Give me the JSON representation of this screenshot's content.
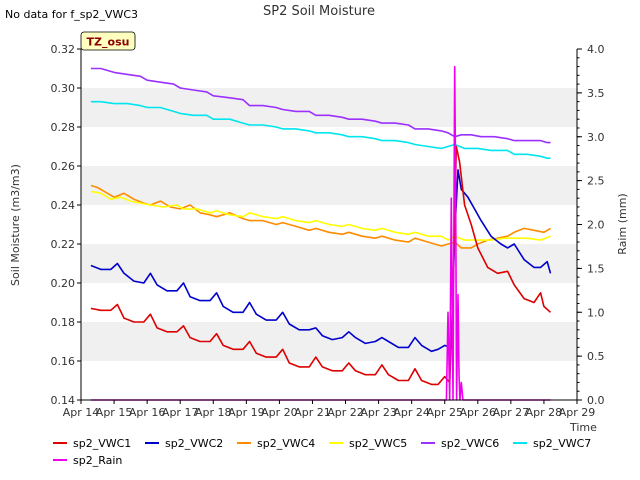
{
  "chart_data": {
    "type": "line",
    "title": "SP2 Soil Moisture",
    "no_data_note": "No data for f_sp2_VWC3",
    "badge": "TZ_osu",
    "xlabel": "Time",
    "ylabel": "Soil Moisture (m3/m3)",
    "y2label": "Raim (mm)",
    "x_range": [
      14,
      29
    ],
    "ylim": [
      0.14,
      0.32
    ],
    "y2lim": [
      0.0,
      4.0
    ],
    "x_ticks": [
      {
        "v": 14,
        "label": "Apr 14"
      },
      {
        "v": 15,
        "label": "Apr 15"
      },
      {
        "v": 16,
        "label": "Apr 16"
      },
      {
        "v": 17,
        "label": "Apr 17"
      },
      {
        "v": 18,
        "label": "Apr 18"
      },
      {
        "v": 19,
        "label": "Apr 19"
      },
      {
        "v": 20,
        "label": "Apr 20"
      },
      {
        "v": 21,
        "label": "Apr 21"
      },
      {
        "v": 22,
        "label": "Apr 22"
      },
      {
        "v": 23,
        "label": "Apr 23"
      },
      {
        "v": 24,
        "label": "Apr 24"
      },
      {
        "v": 25,
        "label": "Apr 25"
      },
      {
        "v": 26,
        "label": "Apr 26"
      },
      {
        "v": 27,
        "label": "Apr 27"
      },
      {
        "v": 28,
        "label": "Apr 28"
      },
      {
        "v": 29,
        "label": "Apr 29"
      }
    ],
    "y_ticks": [
      {
        "v": 0.14,
        "label": "0.14"
      },
      {
        "v": 0.16,
        "label": "0.16"
      },
      {
        "v": 0.18,
        "label": "0.18"
      },
      {
        "v": 0.2,
        "label": "0.20"
      },
      {
        "v": 0.22,
        "label": "0.22"
      },
      {
        "v": 0.24,
        "label": "0.24"
      },
      {
        "v": 0.26,
        "label": "0.26"
      },
      {
        "v": 0.28,
        "label": "0.28"
      },
      {
        "v": 0.3,
        "label": "0.30"
      },
      {
        "v": 0.32,
        "label": "0.32"
      }
    ],
    "y2_ticks": [
      {
        "v": 0.0,
        "label": "0.0"
      },
      {
        "v": 0.5,
        "label": "0.5"
      },
      {
        "v": 1.0,
        "label": "1.0"
      },
      {
        "v": 1.5,
        "label": "1.5"
      },
      {
        "v": 2.0,
        "label": "2.0"
      },
      {
        "v": 2.5,
        "label": "2.5"
      },
      {
        "v": 3.0,
        "label": "3.0"
      },
      {
        "v": 3.5,
        "label": "3.5"
      },
      {
        "v": 4.0,
        "label": "4.0"
      }
    ],
    "series": [
      {
        "name": "sp2_VWC6",
        "color": "#9b30ff",
        "axis": "left",
        "x": [
          14.3,
          14.6,
          15.0,
          15.4,
          15.8,
          16.0,
          16.4,
          16.8,
          17.0,
          17.4,
          17.8,
          18.0,
          18.5,
          18.9,
          19.1,
          19.5,
          19.9,
          20.1,
          20.5,
          20.9,
          21.1,
          21.5,
          21.9,
          22.1,
          22.5,
          22.9,
          23.1,
          23.5,
          23.9,
          24.1,
          24.5,
          24.9,
          25.1,
          25.3,
          25.5,
          25.8,
          26.1,
          26.5,
          26.9,
          27.1,
          27.5,
          27.9,
          28.1,
          28.2
        ],
        "y": [
          0.31,
          0.31,
          0.308,
          0.307,
          0.306,
          0.304,
          0.303,
          0.302,
          0.3,
          0.299,
          0.298,
          0.296,
          0.295,
          0.294,
          0.291,
          0.291,
          0.29,
          0.289,
          0.288,
          0.288,
          0.286,
          0.286,
          0.285,
          0.284,
          0.284,
          0.283,
          0.282,
          0.282,
          0.281,
          0.279,
          0.279,
          0.278,
          0.277,
          0.275,
          0.276,
          0.276,
          0.275,
          0.275,
          0.274,
          0.273,
          0.273,
          0.273,
          0.272,
          0.272
        ]
      },
      {
        "name": "sp2_VWC7",
        "color": "#00e5ee",
        "axis": "left",
        "x": [
          14.3,
          14.6,
          15.0,
          15.4,
          15.8,
          16.0,
          16.4,
          16.8,
          17.0,
          17.4,
          17.8,
          18.0,
          18.5,
          18.9,
          19.1,
          19.5,
          19.9,
          20.1,
          20.5,
          20.9,
          21.1,
          21.5,
          21.9,
          22.1,
          22.5,
          22.9,
          23.1,
          23.5,
          23.9,
          24.1,
          24.5,
          24.9,
          25.1,
          25.3,
          25.6,
          26.0,
          26.4,
          26.9,
          27.1,
          27.5,
          27.9,
          28.1,
          28.2
        ],
        "y": [
          0.293,
          0.293,
          0.292,
          0.292,
          0.291,
          0.29,
          0.29,
          0.288,
          0.287,
          0.286,
          0.286,
          0.284,
          0.284,
          0.282,
          0.281,
          0.281,
          0.28,
          0.279,
          0.279,
          0.278,
          0.277,
          0.277,
          0.276,
          0.275,
          0.275,
          0.274,
          0.273,
          0.273,
          0.272,
          0.271,
          0.27,
          0.269,
          0.27,
          0.271,
          0.269,
          0.269,
          0.268,
          0.268,
          0.266,
          0.266,
          0.265,
          0.264,
          0.264
        ]
      },
      {
        "name": "sp2_VWC4",
        "color": "#ff8c00",
        "axis": "left",
        "x": [
          14.3,
          14.5,
          14.8,
          15.0,
          15.3,
          15.6,
          15.9,
          16.1,
          16.4,
          16.7,
          17.0,
          17.3,
          17.6,
          17.9,
          18.1,
          18.5,
          18.9,
          19.1,
          19.5,
          19.9,
          20.1,
          20.5,
          20.9,
          21.1,
          21.5,
          21.9,
          22.1,
          22.5,
          22.9,
          23.1,
          23.5,
          23.9,
          24.1,
          24.5,
          24.9,
          25.1,
          25.3,
          25.5,
          25.8,
          26.0,
          26.3,
          26.6,
          26.9,
          27.1,
          27.4,
          27.7,
          28.0,
          28.2
        ],
        "y": [
          0.25,
          0.249,
          0.246,
          0.244,
          0.246,
          0.243,
          0.241,
          0.24,
          0.242,
          0.239,
          0.238,
          0.24,
          0.236,
          0.235,
          0.234,
          0.236,
          0.233,
          0.232,
          0.232,
          0.23,
          0.231,
          0.229,
          0.227,
          0.228,
          0.226,
          0.225,
          0.226,
          0.224,
          0.223,
          0.224,
          0.222,
          0.221,
          0.223,
          0.221,
          0.219,
          0.22,
          0.221,
          0.218,
          0.218,
          0.22,
          0.222,
          0.223,
          0.224,
          0.226,
          0.228,
          0.227,
          0.226,
          0.228
        ]
      },
      {
        "name": "sp2_VWC5",
        "color": "#ffff00",
        "axis": "left",
        "x": [
          14.3,
          14.6,
          14.9,
          15.2,
          15.5,
          15.8,
          16.1,
          16.5,
          16.9,
          17.1,
          17.5,
          17.9,
          18.1,
          18.5,
          18.9,
          19.1,
          19.5,
          19.9,
          20.1,
          20.5,
          20.9,
          21.1,
          21.5,
          21.9,
          22.1,
          22.5,
          22.9,
          23.1,
          23.5,
          23.9,
          24.1,
          24.5,
          24.9,
          25.1,
          25.3,
          25.6,
          26.0,
          26.4,
          26.8,
          27.1,
          27.5,
          27.9,
          28.2
        ],
        "y": [
          0.247,
          0.246,
          0.243,
          0.244,
          0.242,
          0.241,
          0.24,
          0.239,
          0.24,
          0.238,
          0.238,
          0.236,
          0.237,
          0.235,
          0.234,
          0.236,
          0.234,
          0.233,
          0.234,
          0.232,
          0.231,
          0.232,
          0.23,
          0.229,
          0.23,
          0.228,
          0.227,
          0.228,
          0.226,
          0.225,
          0.226,
          0.224,
          0.224,
          0.222,
          0.224,
          0.222,
          0.222,
          0.222,
          0.223,
          0.223,
          0.223,
          0.222,
          0.224
        ]
      },
      {
        "name": "sp2_VWC2",
        "color": "#0000cd",
        "axis": "left",
        "x": [
          14.3,
          14.6,
          14.9,
          15.1,
          15.3,
          15.6,
          15.9,
          16.1,
          16.3,
          16.6,
          16.9,
          17.1,
          17.3,
          17.6,
          17.9,
          18.1,
          18.3,
          18.6,
          18.9,
          19.1,
          19.3,
          19.6,
          19.9,
          20.1,
          20.3,
          20.6,
          20.9,
          21.1,
          21.3,
          21.6,
          21.9,
          22.1,
          22.3,
          22.6,
          22.9,
          23.1,
          23.3,
          23.6,
          23.9,
          24.1,
          24.3,
          24.6,
          24.8,
          25.0,
          25.15,
          25.2,
          25.3,
          25.4,
          25.5,
          25.7,
          25.9,
          26.1,
          26.4,
          26.7,
          26.9,
          27.1,
          27.4,
          27.7,
          27.9,
          28.1,
          28.2
        ],
        "y": [
          0.209,
          0.207,
          0.207,
          0.21,
          0.205,
          0.201,
          0.2,
          0.205,
          0.199,
          0.196,
          0.196,
          0.2,
          0.193,
          0.191,
          0.191,
          0.195,
          0.188,
          0.185,
          0.185,
          0.19,
          0.184,
          0.181,
          0.181,
          0.185,
          0.179,
          0.176,
          0.176,
          0.177,
          0.173,
          0.171,
          0.172,
          0.175,
          0.172,
          0.169,
          0.17,
          0.172,
          0.17,
          0.167,
          0.167,
          0.172,
          0.168,
          0.165,
          0.166,
          0.168,
          0.167,
          0.167,
          0.225,
          0.258,
          0.248,
          0.244,
          0.238,
          0.232,
          0.224,
          0.22,
          0.218,
          0.22,
          0.212,
          0.208,
          0.208,
          0.211,
          0.205
        ]
      },
      {
        "name": "sp2_VWC1",
        "color": "#dd0000",
        "axis": "left",
        "x": [
          14.3,
          14.6,
          14.9,
          15.1,
          15.3,
          15.6,
          15.9,
          16.1,
          16.3,
          16.6,
          16.9,
          17.1,
          17.3,
          17.6,
          17.9,
          18.1,
          18.3,
          18.6,
          18.9,
          19.1,
          19.3,
          19.6,
          19.9,
          20.1,
          20.3,
          20.6,
          20.9,
          21.1,
          21.3,
          21.6,
          21.9,
          22.1,
          22.3,
          22.6,
          22.9,
          23.1,
          23.3,
          23.6,
          23.9,
          24.1,
          24.3,
          24.6,
          24.8,
          25.0,
          25.15,
          25.25,
          25.35,
          25.45,
          25.6,
          25.8,
          26.0,
          26.3,
          26.6,
          26.9,
          27.1,
          27.4,
          27.7,
          27.9,
          28.0,
          28.2
        ],
        "y": [
          0.187,
          0.186,
          0.186,
          0.189,
          0.182,
          0.18,
          0.18,
          0.184,
          0.177,
          0.175,
          0.175,
          0.178,
          0.172,
          0.17,
          0.17,
          0.174,
          0.168,
          0.166,
          0.166,
          0.17,
          0.164,
          0.162,
          0.162,
          0.166,
          0.159,
          0.157,
          0.157,
          0.162,
          0.157,
          0.155,
          0.155,
          0.159,
          0.155,
          0.153,
          0.153,
          0.158,
          0.153,
          0.15,
          0.15,
          0.156,
          0.15,
          0.148,
          0.148,
          0.152,
          0.149,
          0.195,
          0.27,
          0.262,
          0.24,
          0.23,
          0.218,
          0.208,
          0.205,
          0.206,
          0.199,
          0.192,
          0.19,
          0.195,
          0.188,
          0.185
        ]
      },
      {
        "name": "sp2_Rain",
        "color": "#ee00ee",
        "axis": "right",
        "x": [
          14.3,
          24.9,
          25.05,
          25.1,
          25.15,
          25.2,
          25.25,
          25.3,
          25.33,
          25.36,
          25.4,
          25.43,
          25.46,
          25.5,
          25.55,
          25.6,
          28.2
        ],
        "y": [
          0.0,
          0.0,
          0.0,
          1.0,
          0.0,
          2.3,
          0.0,
          3.8,
          2.5,
          0.0,
          1.2,
          0.3,
          0.0,
          0.2,
          0.0,
          0.0,
          0.0
        ]
      }
    ],
    "legend": [
      "sp2_VWC1",
      "sp2_VWC2",
      "sp2_VWC4",
      "sp2_VWC5",
      "sp2_VWC6",
      "sp2_VWC7",
      "sp2_Rain"
    ],
    "grid": "horizontal bands"
  }
}
